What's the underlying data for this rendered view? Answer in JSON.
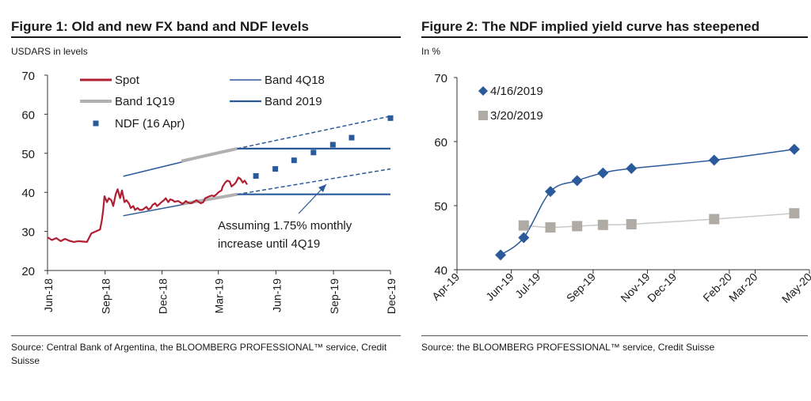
{
  "figure1": {
    "title": "Figure 1: Old and new FX band and NDF levels",
    "subtitle": "USDARS in levels",
    "source": "Source: Central Bank of Argentina, the BLOOMBERG PROFESSIONAL™ service, Credit Suisse",
    "annotation_line1": "Assuming 1.75% monthly",
    "annotation_line2": "increase until 4Q19"
  },
  "figure2": {
    "title": "Figure 2: The NDF implied yield curve has steepened",
    "subtitle": "In %",
    "source": "Source: the BLOOMBERG PROFESSIONAL™ service, Credit Suisse"
  },
  "colors": {
    "spot": "#b01e32",
    "band_4q18": "#2a5a9a",
    "band_1q19": "#b0b0b0",
    "band_2019": "#2a5a9a",
    "ndf": "#2a5a9a",
    "series_apr": "#2a5a9a",
    "series_mar": "#b0aaa4",
    "fit_mar": "#c8c8c8"
  },
  "chart_data": [
    {
      "type": "line",
      "title": "Figure 1: Old and new FX band and NDF levels",
      "ylabel": "USDARS in levels",
      "ylim": [
        20,
        70
      ],
      "yticks": [
        20,
        30,
        40,
        50,
        60,
        70
      ],
      "xlim": [
        "2018-06-01",
        "2019-12-01"
      ],
      "xticks": [
        "Jun-18",
        "Sep-18",
        "Dec-18",
        "Mar-19",
        "Jun-19",
        "Sep-19",
        "Dec-19"
      ],
      "legend_position": "top-left",
      "series": [
        {
          "name": "Spot",
          "x": [
            "2018-06-01",
            "2018-06-08",
            "2018-06-15",
            "2018-06-22",
            "2018-06-29",
            "2018-07-06",
            "2018-07-13",
            "2018-07-20",
            "2018-07-27",
            "2018-08-03",
            "2018-08-10",
            "2018-08-17",
            "2018-08-24",
            "2018-08-27",
            "2018-08-29",
            "2018-08-31",
            "2018-09-04",
            "2018-09-07",
            "2018-09-11",
            "2018-09-14",
            "2018-09-18",
            "2018-09-21",
            "2018-09-25",
            "2018-09-28",
            "2018-10-02",
            "2018-10-05",
            "2018-10-09",
            "2018-10-12",
            "2018-10-16",
            "2018-10-19",
            "2018-10-23",
            "2018-10-26",
            "2018-10-30",
            "2018-11-02",
            "2018-11-06",
            "2018-11-09",
            "2018-11-13",
            "2018-11-16",
            "2018-11-20",
            "2018-11-23",
            "2018-11-27",
            "2018-11-30",
            "2018-12-04",
            "2018-12-07",
            "2018-12-11",
            "2018-12-14",
            "2018-12-18",
            "2018-12-21",
            "2018-12-27",
            "2019-01-03",
            "2019-01-08",
            "2019-01-11",
            "2019-01-15",
            "2019-01-18",
            "2019-01-22",
            "2019-01-25",
            "2019-01-29",
            "2019-02-01",
            "2019-02-05",
            "2019-02-08",
            "2019-02-12",
            "2019-02-15",
            "2019-02-19",
            "2019-02-22",
            "2019-02-26",
            "2019-03-01",
            "2019-03-06",
            "2019-03-08",
            "2019-03-12",
            "2019-03-15",
            "2019-03-19",
            "2019-03-22",
            "2019-03-26",
            "2019-03-29",
            "2019-04-02",
            "2019-04-05",
            "2019-04-09",
            "2019-04-12",
            "2019-04-16"
          ],
          "y": [
            28.5,
            27.8,
            28.3,
            27.5,
            28.1,
            27.6,
            27.3,
            27.5,
            27.4,
            27.3,
            29.5,
            30.0,
            30.5,
            33.0,
            35.5,
            39.0,
            37.5,
            38.5,
            38.0,
            36.5,
            39.5,
            40.8,
            38.5,
            40.5,
            37.5,
            38.0,
            37.2,
            36.0,
            36.5,
            35.5,
            36.0,
            35.5,
            35.5,
            35.8,
            36.3,
            35.6,
            36.0,
            36.8,
            37.2,
            36.5,
            37.0,
            37.5,
            38.0,
            38.5,
            37.5,
            38.2,
            38.0,
            37.6,
            37.8,
            37.0,
            37.8,
            37.4,
            37.2,
            37.3,
            37.7,
            38.0,
            37.5,
            37.2,
            37.5,
            38.5,
            38.8,
            39.0,
            39.2,
            39.0,
            39.5,
            40.0,
            40.5,
            41.5,
            42.5,
            43.0,
            42.8,
            41.5,
            42.0,
            42.5,
            43.8,
            43.5,
            42.5,
            43.0,
            42.0
          ]
        },
        {
          "name": "Band 4Q18",
          "x": [
            "2018-09-30",
            "2019-03-31"
          ],
          "y_upper": [
            44.1,
            51.2
          ],
          "y_lower": [
            34.0,
            39.5
          ]
        },
        {
          "name": "Band 1Q19",
          "x": [
            "2019-01-01",
            "2019-03-31"
          ],
          "y_upper": [
            48.0,
            51.2
          ],
          "y_lower": [
            37.0,
            39.5
          ]
        },
        {
          "name": "Band 2019",
          "x": [
            "2019-03-31",
            "2019-12-01"
          ],
          "y_upper": [
            51.2,
            51.2
          ],
          "y_lower": [
            39.5,
            39.5
          ],
          "extension_dashed_x": [
            "2019-03-31",
            "2019-12-01"
          ],
          "extension_dashed_upper": [
            51.2,
            59.5
          ],
          "extension_dashed_lower": [
            39.5,
            46.0
          ]
        },
        {
          "name": "NDF (16 Apr)",
          "x": [
            "2019-04-30",
            "2019-05-31",
            "2019-06-30",
            "2019-07-31",
            "2019-08-31",
            "2019-09-30",
            "2019-12-01"
          ],
          "y": [
            44.2,
            46.0,
            48.2,
            50.2,
            52.2,
            54.0,
            59.0
          ]
        }
      ],
      "annotations": [
        "Assuming 1.75% monthly",
        "increase until 4Q19"
      ]
    },
    {
      "type": "scatter",
      "title": "Figure 2: The NDF implied yield curve has steepened",
      "ylabel": "In %",
      "ylim": [
        40,
        70
      ],
      "yticks": [
        40,
        50,
        60,
        70
      ],
      "xlim": [
        "2019-04-01",
        "2020-05-01"
      ],
      "xticks": [
        "Apr-19",
        "Jun-19",
        "Jul-19",
        "Sep-19",
        "Nov-19",
        "Dec-19",
        "Feb-20",
        "Mar-20",
        "May-20"
      ],
      "legend_position": "top-left",
      "series": [
        {
          "name": "4/16/2019",
          "x": [
            "2019-05-20",
            "2019-06-15",
            "2019-07-15",
            "2019-08-14",
            "2019-09-12",
            "2019-10-14",
            "2020-01-15",
            "2020-04-14"
          ],
          "y": [
            42.3,
            45.0,
            52.2,
            53.9,
            55.1,
            55.8,
            57.1,
            58.8
          ]
        },
        {
          "name": "3/20/2019",
          "x": [
            "2019-06-15",
            "2019-07-15",
            "2019-08-14",
            "2019-09-12",
            "2019-10-14",
            "2020-01-15",
            "2020-04-14"
          ],
          "y": [
            46.9,
            46.6,
            46.8,
            47.0,
            47.1,
            47.9,
            48.8
          ]
        }
      ]
    }
  ]
}
